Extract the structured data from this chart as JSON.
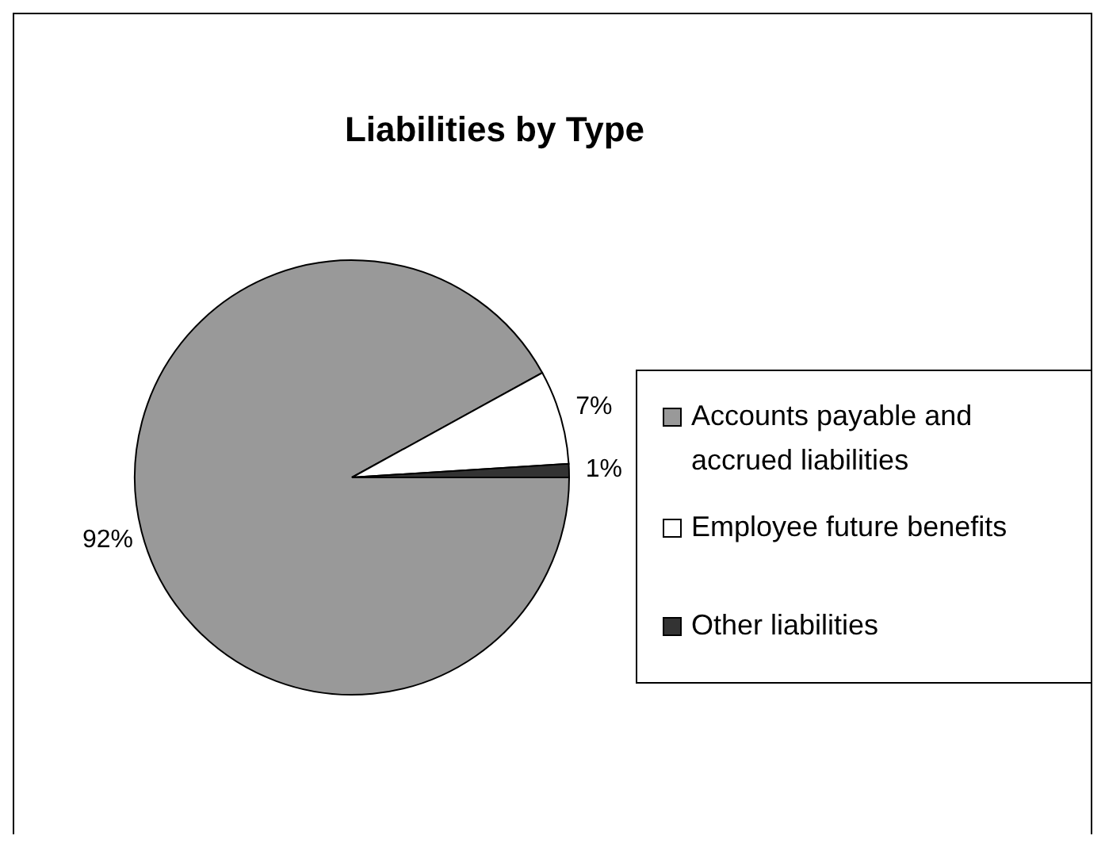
{
  "chart_data": {
    "type": "pie",
    "title": "Liabilities by Type",
    "categories": [
      "Accounts payable and accrued liabilities",
      "Employee future benefits",
      "Other liabilities"
    ],
    "values": [
      92,
      7,
      1
    ],
    "colors": [
      "#999999",
      "#ffffff",
      "#333333"
    ],
    "value_labels": [
      "92%",
      "7%",
      "1%"
    ],
    "legend": "right"
  }
}
